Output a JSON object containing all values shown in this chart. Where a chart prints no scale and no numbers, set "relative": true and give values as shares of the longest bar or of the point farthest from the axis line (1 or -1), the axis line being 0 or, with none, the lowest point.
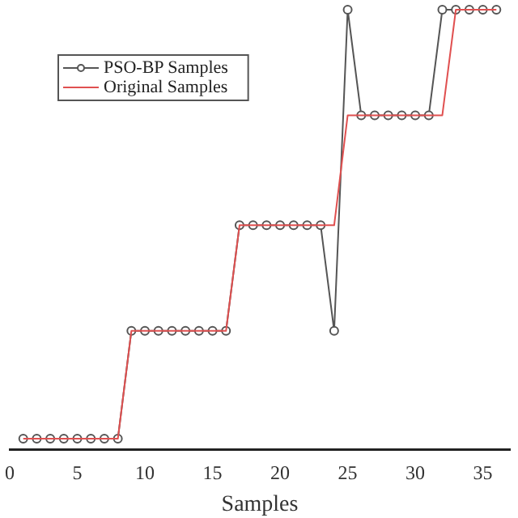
{
  "chart_data": {
    "type": "line",
    "relative": true,
    "xlabel": "Samples",
    "x": [
      1,
      2,
      3,
      4,
      5,
      6,
      7,
      8,
      9,
      10,
      11,
      12,
      13,
      14,
      15,
      16,
      17,
      18,
      19,
      20,
      21,
      22,
      23,
      24,
      25,
      26,
      27,
      28,
      29,
      30,
      31,
      32,
      33,
      34,
      35,
      36
    ],
    "xlim": [
      0,
      37
    ],
    "xticks": [
      0,
      5,
      10,
      15,
      20,
      25,
      30,
      35
    ],
    "legend": "top left",
    "grid": false,
    "line_style": "solid",
    "series": [
      {
        "name": "PSO-BP Samples",
        "color": "#555555",
        "marker": "circle",
        "values": [
          0.025,
          0.025,
          0.025,
          0.025,
          0.025,
          0.025,
          0.025,
          0.025,
          0.27,
          0.27,
          0.27,
          0.27,
          0.27,
          0.27,
          0.27,
          0.27,
          0.51,
          0.51,
          0.51,
          0.51,
          0.51,
          0.51,
          0.51,
          0.27,
          1,
          0.76,
          0.76,
          0.76,
          0.76,
          0.76,
          0.76,
          1,
          1,
          1,
          1,
          1
        ]
      },
      {
        "name": "Original Samples",
        "color": "#e05050",
        "marker": "none",
        "values": [
          0.025,
          0.025,
          0.025,
          0.025,
          0.025,
          0.025,
          0.025,
          0.025,
          0.27,
          0.27,
          0.27,
          0.27,
          0.27,
          0.27,
          0.27,
          0.27,
          0.51,
          0.51,
          0.51,
          0.51,
          0.51,
          0.51,
          0.51,
          0.51,
          0.76,
          0.76,
          0.76,
          0.76,
          0.76,
          0.76,
          0.76,
          0.76,
          1,
          1,
          1,
          1
        ]
      }
    ]
  }
}
